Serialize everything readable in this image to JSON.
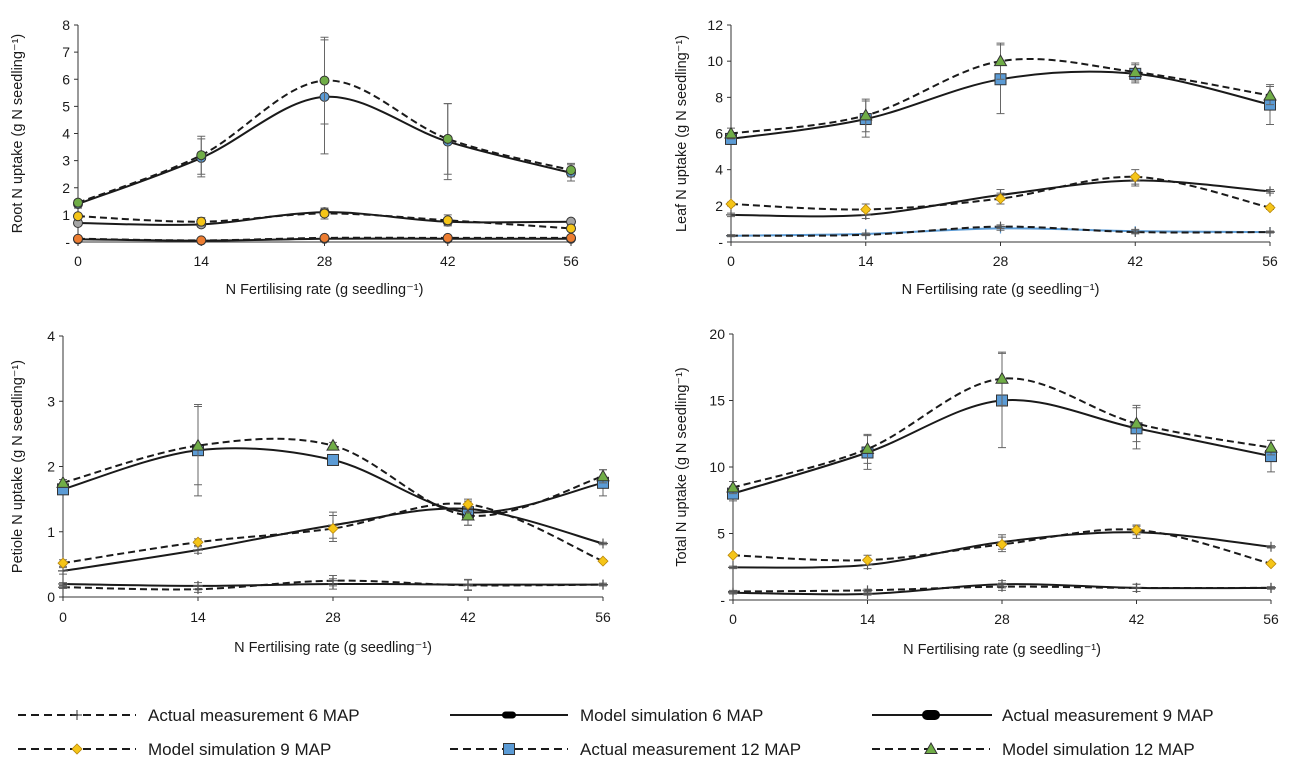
{
  "legend": [
    {
      "label": "Actual measurement 6 MAP",
      "style": "dashed",
      "marker": "plus",
      "color": "#000000"
    },
    {
      "label": "Model simulation 6 MAP",
      "style": "solid",
      "marker": "pill",
      "color": "#000000"
    },
    {
      "label": "Actual measurement 9 MAP",
      "style": "solid",
      "marker": "thickpill",
      "color": "#000000"
    },
    {
      "label": "Model simulation 9 MAP",
      "style": "dashed",
      "marker": "diamond",
      "color": "#f5c518"
    },
    {
      "label": "Actual measurement 12 MAP",
      "style": "dashed",
      "marker": "square",
      "color": "#5b9bd5"
    },
    {
      "label": "Model simulation 12 MAP",
      "style": "dashed",
      "marker": "triangle",
      "color": "#70ad47"
    }
  ],
  "chart_data": [
    {
      "type": "line",
      "xlabel": "N Fertilising rate (g seedling⁻¹)",
      "ylabel": "Root N uptake (g N seedling⁻¹)",
      "x": [
        0,
        14,
        28,
        42,
        56
      ],
      "xlim": [
        0,
        56
      ],
      "ylim": [
        0,
        8
      ],
      "yticks": [
        "-",
        "1",
        "2",
        "3",
        "4",
        "5",
        "6",
        "7",
        "8"
      ],
      "series": [
        {
          "style": "solid",
          "marker": "circle",
          "color": "#5b9bd5",
          "values": [
            1.4,
            3.1,
            5.35,
            3.7,
            2.55
          ],
          "err": [
            0.15,
            0.7,
            2.1,
            1.4,
            0.3
          ]
        },
        {
          "style": "dashed",
          "marker": "circle",
          "color": "#70ad47",
          "values": [
            1.45,
            3.2,
            5.95,
            3.8,
            2.65
          ],
          "err": [
            0.1,
            0.7,
            1.6,
            1.3,
            0.25
          ]
        },
        {
          "style": "solid",
          "marker": "circle",
          "color": "#a5a5a5",
          "values": [
            0.7,
            0.65,
            1.1,
            0.75,
            0.75
          ],
          "err": [
            0.05,
            0.1,
            0.15,
            0.15,
            0.05
          ]
        },
        {
          "style": "dashed",
          "marker": "circle",
          "color": "#f5c518",
          "values": [
            0.95,
            0.75,
            1.05,
            0.8,
            0.5
          ],
          "err": [
            0.05,
            0.15,
            0.2,
            0.2,
            0.05
          ]
        },
        {
          "style": "solid",
          "marker": "circle",
          "color": "#4472c4",
          "values": [
            0.1,
            0.05,
            0.12,
            0.12,
            0.12
          ],
          "err": [
            0.05,
            0.05,
            0.05,
            0.05,
            0.05
          ]
        },
        {
          "style": "dashed",
          "marker": "circle",
          "color": "#ed7d31",
          "values": [
            0.12,
            0.06,
            0.15,
            0.15,
            0.15
          ],
          "err": [
            0.05,
            0.05,
            0.05,
            0.05,
            0.05
          ]
        }
      ]
    },
    {
      "type": "line",
      "xlabel": "N Fertilising rate (g seedling⁻¹)",
      "ylabel": "Leaf N uptake (g N seedling⁻¹)",
      "x": [
        0,
        14,
        28,
        42,
        56
      ],
      "xlim": [
        0,
        56
      ],
      "ylim": [
        0,
        12
      ],
      "yticks": [
        "-",
        "2",
        "4",
        "6",
        "8",
        "10",
        "12"
      ],
      "series": [
        {
          "style": "solid",
          "marker": "square",
          "color": "#5b9bd5",
          "values": [
            5.7,
            6.8,
            9.0,
            9.3,
            7.6
          ],
          "err": [
            0.3,
            1.0,
            1.9,
            0.5,
            1.1
          ]
        },
        {
          "style": "dashed",
          "marker": "triangle",
          "color": "#70ad47",
          "values": [
            6.0,
            7.0,
            10.0,
            9.4,
            8.1
          ],
          "err": [
            0.3,
            0.9,
            1.0,
            0.5,
            0.5
          ]
        },
        {
          "style": "solid",
          "marker": "plus",
          "color": "#000000",
          "values": [
            1.5,
            1.5,
            2.6,
            3.4,
            2.8
          ],
          "err": [
            0.1,
            0.2,
            0.3,
            0.3,
            0.1
          ]
        },
        {
          "style": "dashed",
          "marker": "diamond",
          "color": "#f5c518",
          "values": [
            2.1,
            1.8,
            2.4,
            3.6,
            1.9
          ],
          "err": [
            0.1,
            0.3,
            0.3,
            0.4,
            0.1
          ]
        },
        {
          "style": "solid",
          "marker": "plus",
          "color": "#5b9bd5",
          "values": [
            0.35,
            0.45,
            0.75,
            0.6,
            0.55
          ],
          "err": [
            0.05,
            0.05,
            0.1,
            0.1,
            0.05
          ]
        },
        {
          "style": "dashed",
          "marker": "plus",
          "color": "#000000",
          "values": [
            0.35,
            0.4,
            0.85,
            0.55,
            0.55
          ],
          "err": [
            0.05,
            0.05,
            0.1,
            0.1,
            0.05
          ]
        }
      ]
    },
    {
      "type": "line",
      "xlabel": "N Fertilising rate (g seedling⁻¹)",
      "ylabel": "Petiole N uptake (g N seedling⁻¹)",
      "x": [
        0,
        14,
        28,
        42,
        56
      ],
      "xlim": [
        0,
        56
      ],
      "ylim": [
        0,
        4
      ],
      "yticks": [
        "0",
        "1",
        "2",
        "3",
        "4"
      ],
      "series": [
        {
          "style": "solid",
          "marker": "square",
          "color": "#5b9bd5",
          "values": [
            1.65,
            2.25,
            2.1,
            1.3,
            1.75
          ],
          "err": [
            0.05,
            0.7,
            0.05,
            0.2,
            0.2
          ]
        },
        {
          "style": "dashed",
          "marker": "triangle",
          "color": "#70ad47",
          "values": [
            1.75,
            2.32,
            2.32,
            1.25,
            1.85
          ],
          "err": [
            0.05,
            0.6,
            0.05,
            0.15,
            0.1
          ]
        },
        {
          "style": "solid",
          "marker": "plus",
          "color": "#000000",
          "values": [
            0.4,
            0.72,
            1.1,
            1.35,
            0.82
          ],
          "err": [
            0.05,
            0.05,
            0.2,
            0.05,
            0.02
          ]
        },
        {
          "style": "dashed",
          "marker": "diamond",
          "color": "#f5c518",
          "values": [
            0.52,
            0.84,
            1.05,
            1.42,
            0.55
          ],
          "err": [
            0.05,
            0.05,
            0.2,
            0.05,
            0.02
          ]
        },
        {
          "style": "solid",
          "marker": "plus",
          "color": "#000000",
          "values": [
            0.2,
            0.17,
            0.2,
            0.19,
            0.19
          ],
          "err": [
            0.02,
            0.05,
            0.08,
            0.08,
            0.02
          ]
        },
        {
          "style": "dashed",
          "marker": "plus",
          "color": "#000000",
          "values": [
            0.15,
            0.12,
            0.25,
            0.18,
            0.19
          ],
          "err": [
            0.02,
            0.05,
            0.08,
            0.08,
            0.02
          ]
        }
      ]
    },
    {
      "type": "line",
      "xlabel": "N Fertilising rate (g seedling⁻¹)",
      "ylabel": "Total N uptake (g N seedling⁻¹)",
      "x": [
        0,
        14,
        28,
        42,
        56
      ],
      "xlim": [
        0,
        56
      ],
      "ylim": [
        0,
        22
      ],
      "yticks": [
        "-",
        "5",
        "10",
        "15",
        "20"
      ],
      "series": [
        {
          "style": "solid",
          "marker": "square",
          "color": "#5b9bd5",
          "values": [
            8.8,
            12.2,
            16.5,
            14.2,
            11.9
          ],
          "err": [
            0.6,
            1.4,
            3.9,
            1.7,
            1.3
          ]
        },
        {
          "style": "dashed",
          "marker": "triangle",
          "color": "#70ad47",
          "values": [
            9.3,
            12.5,
            18.3,
            14.6,
            12.6
          ],
          "err": [
            0.5,
            1.2,
            2.2,
            1.5,
            0.6
          ]
        },
        {
          "style": "solid",
          "marker": "plus",
          "color": "#000000",
          "values": [
            2.7,
            2.9,
            4.8,
            5.6,
            4.4
          ],
          "err": [
            0.1,
            0.3,
            0.6,
            0.5,
            0.1
          ]
        },
        {
          "style": "dashed",
          "marker": "diamond",
          "color": "#f5c518",
          "values": [
            3.7,
            3.3,
            4.6,
            5.8,
            3.0
          ],
          "err": [
            0.1,
            0.4,
            0.6,
            0.4,
            0.1
          ]
        },
        {
          "style": "solid",
          "marker": "plus",
          "color": "#000000",
          "values": [
            0.6,
            0.5,
            1.3,
            1.0,
            1.0
          ],
          "err": [
            0.1,
            0.1,
            0.3,
            0.3,
            0.1
          ]
        },
        {
          "style": "dashed",
          "marker": "plus",
          "color": "#000000",
          "values": [
            0.7,
            0.8,
            1.1,
            1.0,
            1.0
          ],
          "err": [
            0.1,
            0.1,
            0.3,
            0.3,
            0.1
          ]
        }
      ]
    }
  ]
}
